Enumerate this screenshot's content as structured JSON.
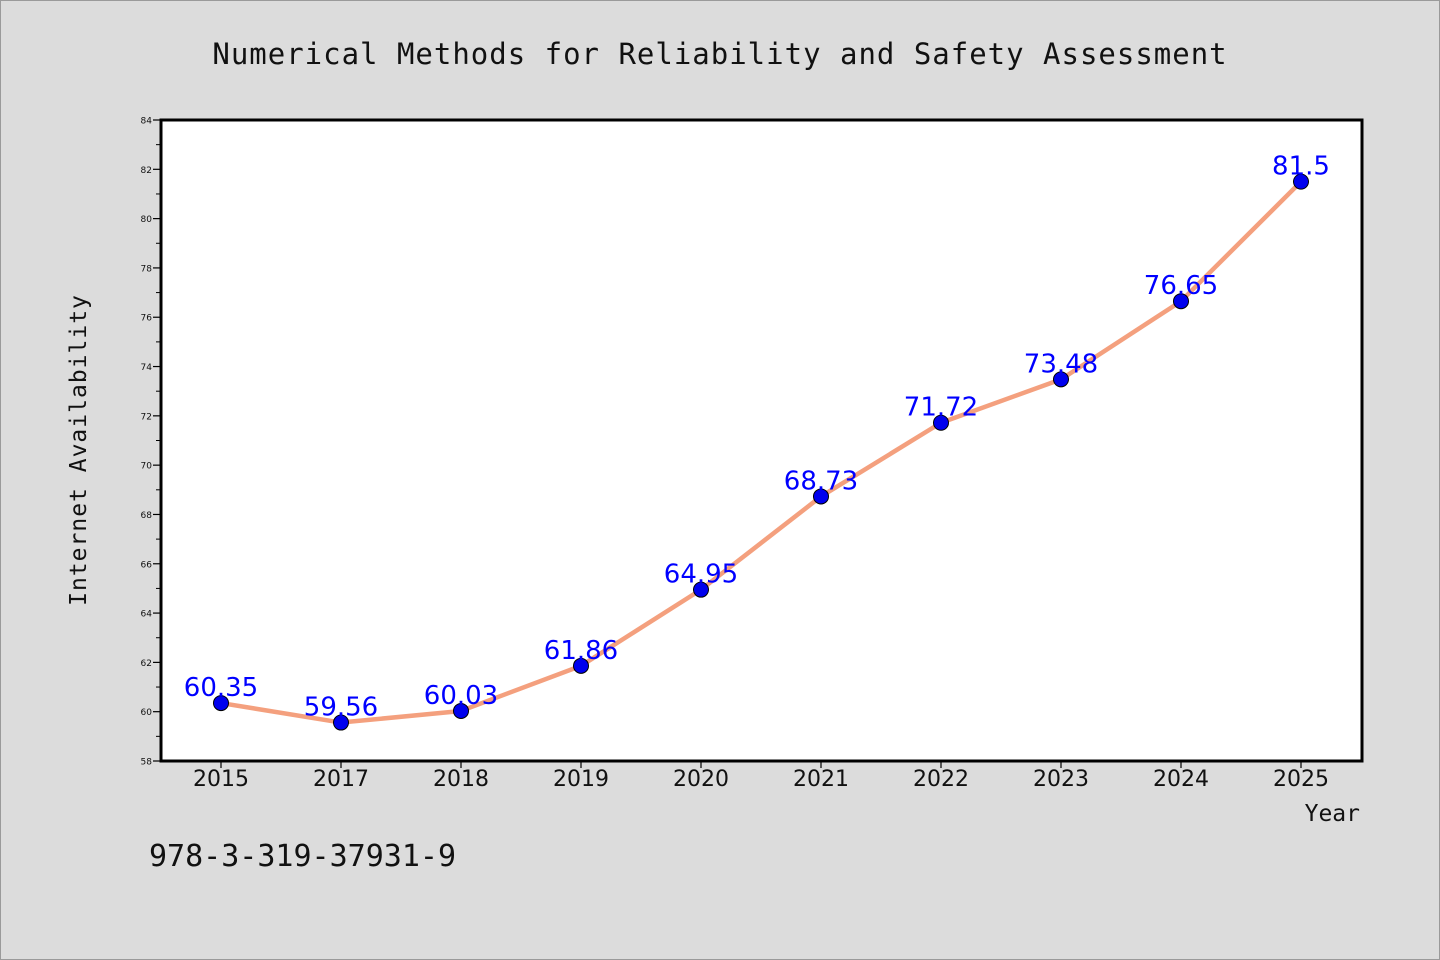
{
  "chart_data": {
    "type": "line",
    "title": "Numerical Methods for Reliability and Safety Assessment",
    "xlabel": "Year",
    "ylabel": "Internet Availability",
    "categories": [
      "2015",
      "2017",
      "2018",
      "2019",
      "2020",
      "2021",
      "2022",
      "2023",
      "2024",
      "2025"
    ],
    "series": [
      {
        "values": [
          60.35,
          59.56,
          60.03,
          61.86,
          64.95,
          68.73,
          71.72,
          73.48,
          76.65,
          81.5
        ]
      }
    ],
    "data_labels": [
      "60.35",
      "59.56",
      "60.03",
      "61.86",
      "64.95",
      "68.73",
      "71.72",
      "73.48",
      "76.65",
      "81.5"
    ],
    "ylim": [
      58,
      84
    ],
    "yticks": [
      58,
      60,
      62,
      64,
      66,
      68,
      70,
      72,
      74,
      76,
      78,
      80,
      82,
      84
    ],
    "grid": false,
    "legend": "none",
    "annotation": "978-3-319-37931-9",
    "colors": {
      "background": "#dcdcdc",
      "plot_area": "#ffffff",
      "line": "#f4a07e",
      "marker": "#0000ee",
      "data_label": "#0000ff",
      "text": "#111111"
    }
  }
}
